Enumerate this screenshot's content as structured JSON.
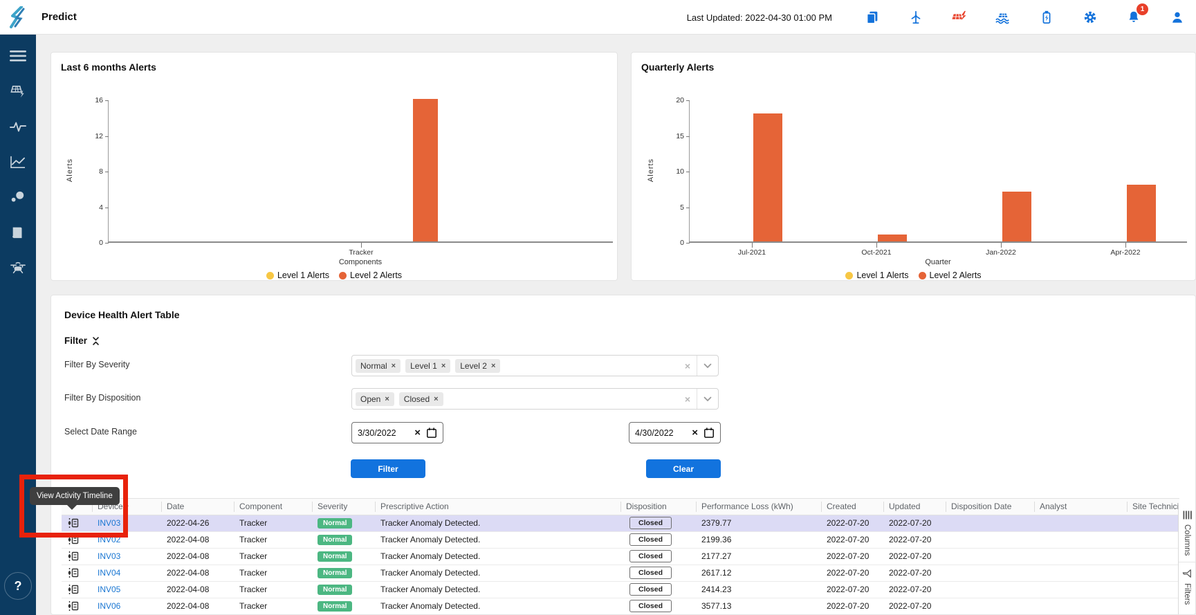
{
  "header": {
    "title": "Predict",
    "last_updated": "Last Updated: 2022-04-30 01:00 PM",
    "notification_count": "1",
    "icons": [
      "documents-icon",
      "wind-turbine-icon",
      "solar-alert-icon",
      "floating-solar-icon",
      "battery-charging-icon",
      "settings-gear-icon",
      "notifications-bell-icon",
      "user-profile-icon"
    ]
  },
  "sidebar": {
    "items": [
      "menu",
      "solar-panel",
      "activity",
      "line-chart",
      "cluster",
      "library",
      "drone"
    ],
    "help_label": "?"
  },
  "chart_data": [
    {
      "type": "bar",
      "title": "Last 6 months Alerts",
      "categories": [
        "Tracker"
      ],
      "series": [
        {
          "name": "Level 1 Alerts",
          "color": "#f7c744",
          "values": [
            0
          ]
        },
        {
          "name": "Level 2 Alerts",
          "color": "#e56437",
          "values": [
            16
          ]
        }
      ],
      "xlabel": "Components",
      "ylabel": "Alerts",
      "ylim": [
        0,
        16
      ],
      "yticks": [
        0,
        4,
        8,
        12,
        16
      ],
      "grid": false,
      "legend_position": "bottom"
    },
    {
      "type": "bar",
      "title": "Quarterly Alerts",
      "categories": [
        "Jul-2021",
        "Oct-2021",
        "Jan-2022",
        "Apr-2022"
      ],
      "series": [
        {
          "name": "Level 1 Alerts",
          "color": "#f7c744",
          "values": [
            0,
            0,
            0,
            0
          ]
        },
        {
          "name": "Level 2 Alerts",
          "color": "#e56437",
          "values": [
            18,
            1,
            7,
            8
          ]
        }
      ],
      "xlabel": "Quarter",
      "ylabel": "Alerts",
      "ylim": [
        0,
        20
      ],
      "yticks": [
        0,
        5,
        10,
        15,
        20
      ],
      "grid": false,
      "legend_position": "bottom"
    }
  ],
  "device_table": {
    "title": "Device Health Alert Table",
    "filter": {
      "section_label": "Filter",
      "severity_label": "Filter By Severity",
      "severity_chips": [
        "Normal",
        "Level 1",
        "Level 2"
      ],
      "disposition_label": "Filter By Disposition",
      "disposition_chips": [
        "Open",
        "Closed"
      ],
      "date_label": "Select Date Range",
      "date_start": "3/30/2022",
      "date_end": "4/30/2022",
      "filter_button": "Filter",
      "clear_button": "Clear"
    },
    "table": {
      "columns": [
        "",
        "Device",
        "Date",
        "Component",
        "Severity",
        "Prescriptive Action",
        "Disposition",
        "Performance Loss (kWh)",
        "Created",
        "Updated",
        "Disposition Date",
        "Analyst",
        "Site Technician"
      ],
      "sort": {
        "column": "Device",
        "direction": "asc"
      },
      "rows": [
        {
          "device": "INV03",
          "date": "2022-04-26",
          "component": "Tracker",
          "severity": "Normal",
          "action": "Tracker Anomaly Detected.",
          "disposition": "Closed",
          "loss": "2379.77",
          "created": "2022-07-20",
          "updated": "2022-07-20",
          "disposition_date": "",
          "analyst": "",
          "site_technician": "",
          "highlighted": true
        },
        {
          "device": "INV02",
          "date": "2022-04-08",
          "component": "Tracker",
          "severity": "Normal",
          "action": "Tracker Anomaly Detected.",
          "disposition": "Closed",
          "loss": "2199.36",
          "created": "2022-07-20",
          "updated": "2022-07-20",
          "disposition_date": "",
          "analyst": "",
          "site_technician": "",
          "highlighted": false
        },
        {
          "device": "INV03",
          "date": "2022-04-08",
          "component": "Tracker",
          "severity": "Normal",
          "action": "Tracker Anomaly Detected.",
          "disposition": "Closed",
          "loss": "2177.27",
          "created": "2022-07-20",
          "updated": "2022-07-20",
          "disposition_date": "",
          "analyst": "",
          "site_technician": "",
          "highlighted": false
        },
        {
          "device": "INV04",
          "date": "2022-04-08",
          "component": "Tracker",
          "severity": "Normal",
          "action": "Tracker Anomaly Detected.",
          "disposition": "Closed",
          "loss": "2617.12",
          "created": "2022-07-20",
          "updated": "2022-07-20",
          "disposition_date": "",
          "analyst": "",
          "site_technician": "",
          "highlighted": false
        },
        {
          "device": "INV05",
          "date": "2022-04-08",
          "component": "Tracker",
          "severity": "Normal",
          "action": "Tracker Anomaly Detected.",
          "disposition": "Closed",
          "loss": "2414.23",
          "created": "2022-07-20",
          "updated": "2022-07-20",
          "disposition_date": "",
          "analyst": "",
          "site_technician": "",
          "highlighted": false
        },
        {
          "device": "INV06",
          "date": "2022-04-08",
          "component": "Tracker",
          "severity": "Normal",
          "action": "Tracker Anomaly Detected.",
          "disposition": "Closed",
          "loss": "3577.13",
          "created": "2022-07-20",
          "updated": "2022-07-20",
          "disposition_date": "",
          "analyst": "",
          "site_technician": "",
          "highlighted": false
        }
      ]
    },
    "side_panel": {
      "columns_label": "Columns",
      "filters_label": "Filters"
    }
  },
  "tooltip": {
    "text": "View Activity Timeline"
  },
  "colors": {
    "accent_blue": "#1273de",
    "icon_blue": "#1372db",
    "link_blue": "#1976d2",
    "sidebar_navy": "#0c3b61",
    "badge_green": "#4cb782",
    "bar_orange": "#e56437",
    "legend_yellow": "#f7c744",
    "row_highlight": "#dcdbf5",
    "annotation_red": "#e8220b",
    "alert_icon_red": "#e8432c"
  }
}
